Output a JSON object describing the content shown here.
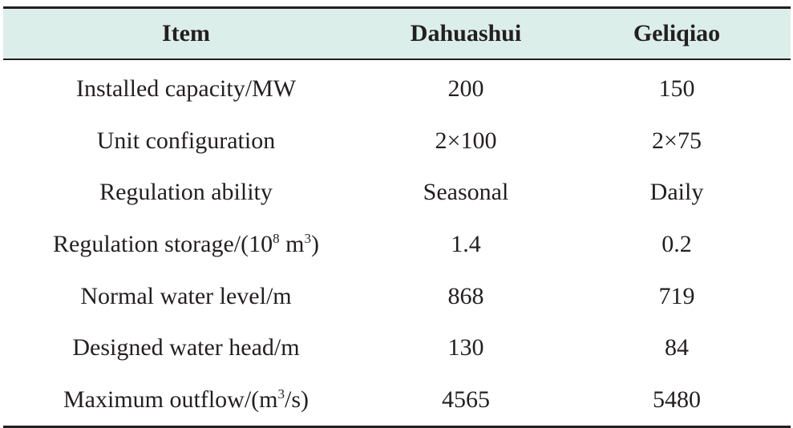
{
  "table": {
    "headers": [
      "Item",
      "Dahuashui",
      "Geliqiao"
    ],
    "rows": [
      {
        "item": "Installed capacity/MW",
        "dahuashui": "200",
        "geliqiao": "150"
      },
      {
        "item": "Unit configuration",
        "dahuashui": "2×100",
        "geliqiao": "2×75"
      },
      {
        "item": "Regulation ability",
        "dahuashui": "Seasonal",
        "geliqiao": "Daily"
      },
      {
        "item_prefix": "Regulation storage/(10",
        "item_sup1": "8",
        "item_mid": " m",
        "item_sup2": "3",
        "item_suffix": ")",
        "dahuashui": "1.4",
        "geliqiao": "0.2"
      },
      {
        "item": "Normal water level/m",
        "dahuashui": "868",
        "geliqiao": "719"
      },
      {
        "item": "Designed water head/m",
        "dahuashui": "130",
        "geliqiao": "84"
      },
      {
        "item_prefix": "Maximum outflow/(m",
        "item_sup": "3",
        "item_suffix": "/s)",
        "dahuashui": "4565",
        "geliqiao": "5480"
      }
    ]
  },
  "colors": {
    "header_background": "#dceee9",
    "text": "#231f20",
    "rule": "#231f20"
  }
}
